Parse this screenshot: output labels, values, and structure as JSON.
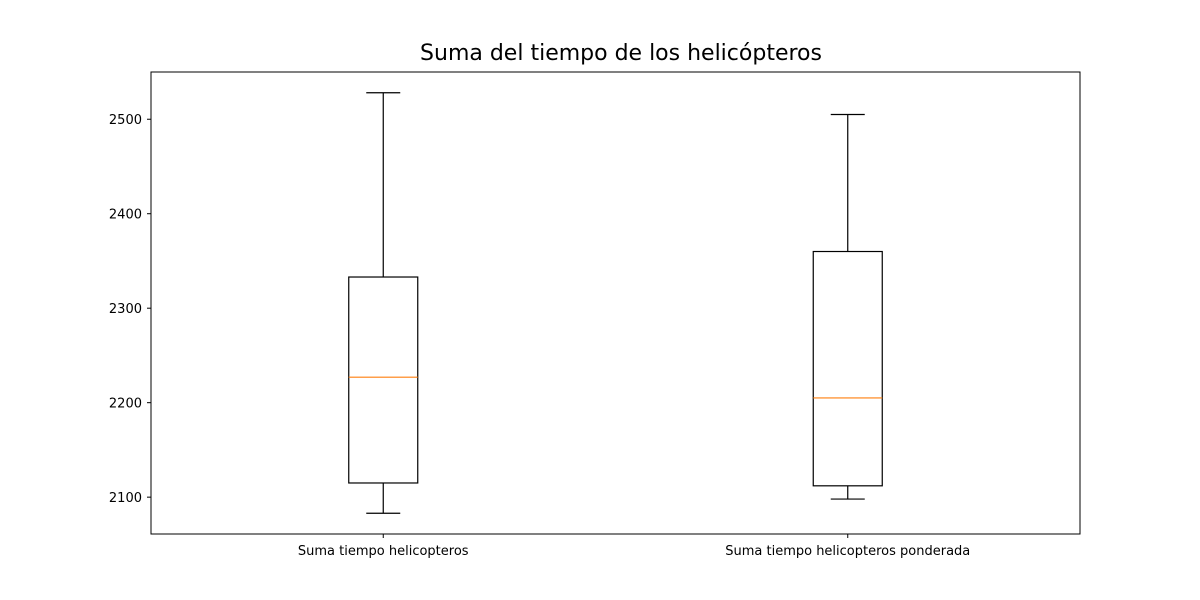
{
  "chart_data": {
    "type": "boxplot",
    "title": "Suma del tiempo de los helicópteros",
    "xlabel": "",
    "ylabel": "",
    "ylim": [
      2061,
      2550
    ],
    "yticks": [
      2100,
      2200,
      2300,
      2400,
      2500
    ],
    "categories": [
      "Suma tiempo helicopteros",
      "Suma tiempo helicopteros ponderada"
    ],
    "boxes": [
      {
        "label": "Suma tiempo helicopteros",
        "whisker_low": 2083,
        "q1": 2115,
        "median": 2227,
        "q3": 2333,
        "whisker_high": 2528
      },
      {
        "label": "Suma tiempo helicopteros ponderada",
        "whisker_low": 2098,
        "q1": 2112,
        "median": 2205,
        "q3": 2360,
        "whisker_high": 2505
      }
    ],
    "grid": false,
    "colors": {
      "box": "#000000",
      "median": "#ff7f0e"
    }
  }
}
